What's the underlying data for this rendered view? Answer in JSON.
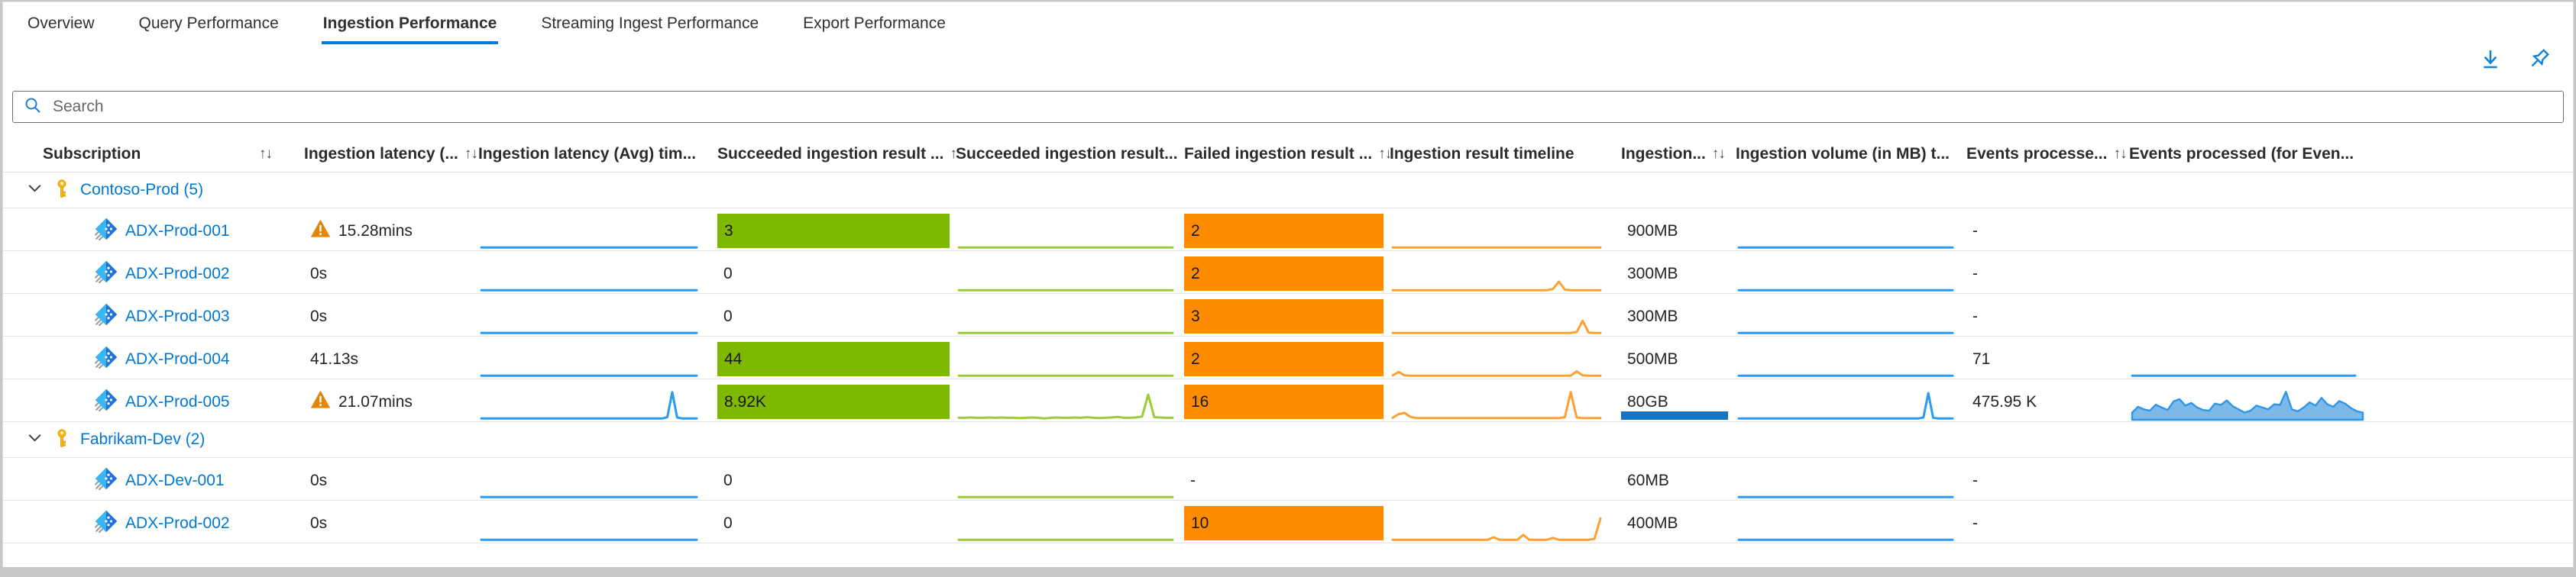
{
  "tabs": [
    {
      "label": "Overview",
      "active": false
    },
    {
      "label": "Query Performance",
      "active": false
    },
    {
      "label": "Ingestion Performance",
      "active": true
    },
    {
      "label": "Streaming Ingest Performance",
      "active": false
    },
    {
      "label": "Export Performance",
      "active": false
    }
  ],
  "search": {
    "placeholder": "Search"
  },
  "colors": {
    "accent": "#0078d4",
    "link": "#0078d4",
    "spark_blue": "#2b9bf2",
    "spark_green": "#9ccb3b",
    "spark_orange": "#ffa033",
    "bar_green": "#7eb900",
    "bar_orange": "#ff8c00",
    "volume_bar": "#1273c3",
    "area_fill": "#7cb9e8",
    "area_stroke": "#2e96e8",
    "warning": "#e08705",
    "key": "#fdb913"
  },
  "table": {
    "columns": [
      {
        "label": "Subscription",
        "sort": true
      },
      {
        "label": "Ingestion latency (...",
        "sort": true
      },
      {
        "label": "Ingestion latency (Avg) tim...",
        "sort": false
      },
      {
        "label": "Succeeded ingestion result ...",
        "sort": true
      },
      {
        "label": "Succeeded ingestion result...",
        "sort": false
      },
      {
        "label": "Failed ingestion result ...",
        "sort": true
      },
      {
        "label": "Ingestion result timeline",
        "sort": false
      },
      {
        "label": "Ingestion...",
        "sort": true
      },
      {
        "label": "Ingestion volume (in MB) t...",
        "sort": false
      },
      {
        "label": "Events processe...",
        "sort": true
      },
      {
        "label": "Events processed (for Even...",
        "sort": false
      }
    ],
    "groups": [
      {
        "label": "Contoso-Prod (5)",
        "rows": [
          {
            "name": "ADX-Prod-001",
            "latency": "15.28mins",
            "warn": true,
            "latency_spark": [
              2,
              2
            ],
            "succeeded": "3",
            "succeeded_bar": true,
            "succeeded_spark": [
              2,
              2
            ],
            "failed": "2",
            "failed_bar": true,
            "result_spark": [
              2,
              2
            ],
            "volume": "900MB",
            "volume_bar": false,
            "volume_spark": [
              2,
              2
            ],
            "events": "-",
            "events_line": null,
            "events_area": null
          },
          {
            "name": "ADX-Prod-002",
            "latency": "0s",
            "warn": false,
            "latency_spark": [
              2,
              2
            ],
            "succeeded": "0",
            "succeeded_bar": false,
            "succeeded_spark": [
              2,
              2
            ],
            "failed": "2",
            "failed_bar": true,
            "result_spark": [
              2,
              2,
              2,
              2,
              2,
              2,
              2,
              2,
              2,
              2,
              2,
              2,
              2,
              2,
              2,
              2,
              2,
              2,
              2,
              2,
              2,
              2,
              2,
              2,
              2,
              2,
              2,
              6,
              30,
              4,
              2,
              2,
              2,
              2,
              2,
              2
            ],
            "volume": "300MB",
            "volume_bar": false,
            "volume_spark": [
              2,
              2
            ],
            "events": "-",
            "events_line": null,
            "events_area": null
          },
          {
            "name": "ADX-Prod-003",
            "latency": "0s",
            "warn": false,
            "latency_spark": [
              2,
              2
            ],
            "succeeded": "0",
            "succeeded_bar": false,
            "succeeded_spark": [
              2,
              2
            ],
            "failed": "3",
            "failed_bar": true,
            "result_spark": [
              2,
              2,
              2,
              2,
              2,
              2,
              2,
              2,
              2,
              2,
              2,
              2,
              2,
              2,
              2,
              2,
              2,
              2,
              2,
              2,
              2,
              2,
              2,
              2,
              2,
              2,
              2,
              2,
              2,
              2,
              2,
              5,
              42,
              3,
              2,
              2
            ],
            "volume": "300MB",
            "volume_bar": false,
            "volume_spark": [
              2,
              2
            ],
            "events": "-",
            "events_line": null,
            "events_area": null
          },
          {
            "name": "ADX-Prod-004",
            "latency": "41.13s",
            "warn": false,
            "latency_spark": [
              2,
              2
            ],
            "succeeded": "44",
            "succeeded_bar": true,
            "succeeded_spark": [
              2,
              2
            ],
            "failed": "2",
            "failed_bar": true,
            "result_spark": [
              3,
              14,
              3,
              2,
              2,
              2,
              2,
              2,
              2,
              2,
              2,
              2,
              2,
              2,
              2,
              2,
              2,
              2,
              2,
              2,
              2,
              2,
              2,
              2,
              2,
              2,
              2,
              2,
              2,
              2,
              2,
              16,
              3,
              2,
              2,
              2
            ],
            "volume": "500MB",
            "volume_bar": false,
            "volume_spark": [
              2,
              2
            ],
            "events": "71",
            "events_line": [
              2,
              2
            ],
            "events_area": null
          },
          {
            "name": "ADX-Prod-005",
            "latency": "21.07mins",
            "warn": true,
            "latency_spark": [
              2,
              2,
              2,
              2,
              2,
              2,
              2,
              2,
              2,
              2,
              2,
              2,
              2,
              2,
              2,
              2,
              2,
              2,
              2,
              2,
              2,
              2,
              2,
              2,
              2,
              2,
              2,
              2,
              2,
              2,
              2,
              2,
              2,
              2,
              2,
              2,
              2,
              2,
              6,
              88,
              5,
              2,
              2,
              2,
              2
            ],
            "succeeded": "8.92K",
            "succeeded_bar": true,
            "succeeded_spark": [
              4,
              4,
              5,
              4,
              4,
              5,
              4,
              5,
              4,
              4,
              3,
              4,
              5,
              4,
              2,
              4,
              5,
              4,
              4,
              5,
              4,
              6,
              4,
              3,
              4,
              5,
              7,
              4,
              4,
              5,
              8,
              80,
              6,
              5,
              4,
              4
            ],
            "failed": "16",
            "failed_bar": true,
            "result_spark": [
              4,
              16,
              20,
              7,
              3,
              3,
              3,
              3,
              3,
              3,
              3,
              3,
              3,
              3,
              3,
              3,
              3,
              3,
              3,
              3,
              3,
              3,
              3,
              3,
              3,
              3,
              3,
              3,
              3,
              6,
              88,
              5,
              3,
              3,
              3,
              3
            ],
            "volume": "80GB",
            "volume_bar": true,
            "volume_spark": [
              2,
              2,
              2,
              2,
              2,
              2,
              2,
              2,
              2,
              2,
              2,
              2,
              2,
              2,
              2,
              2,
              2,
              2,
              2,
              2,
              2,
              2,
              2,
              2,
              2,
              2,
              2,
              2,
              2,
              2,
              2,
              2,
              2,
              2,
              2,
              2,
              2,
              2,
              5,
              85,
              4,
              2,
              2,
              2,
              2
            ],
            "events": "475.95 K",
            "events_line": null,
            "events_area": [
              20,
              38,
              30,
              26,
              45,
              36,
              28,
              55,
              62,
              42,
              50,
              36,
              28,
              26,
              48,
              44,
              58,
              40,
              30,
              20,
              26,
              42,
              36,
              30,
              46,
              44,
              85,
              30,
              24,
              36,
              52,
              42,
              66,
              46,
              38,
              56,
              48,
              34,
              24,
              20
            ]
          }
        ]
      },
      {
        "label": "Fabrikam-Dev (2)",
        "rows": [
          {
            "name": "ADX-Dev-001",
            "latency": "0s",
            "warn": false,
            "latency_spark": [
              2,
              2
            ],
            "succeeded": "0",
            "succeeded_bar": false,
            "succeeded_spark": [
              2,
              2
            ],
            "failed": "-",
            "failed_bar": false,
            "result_spark": null,
            "volume": "60MB",
            "volume_bar": false,
            "volume_spark": [
              2,
              2
            ],
            "events": "-",
            "events_line": null,
            "events_area": null
          },
          {
            "name": "ADX-Prod-002",
            "latency": "0s",
            "warn": false,
            "latency_spark": [
              2,
              2
            ],
            "succeeded": "0",
            "succeeded_bar": false,
            "succeeded_spark": [
              2,
              2
            ],
            "failed": "10",
            "failed_bar": true,
            "result_spark": [
              2,
              2,
              2,
              2,
              2,
              2,
              2,
              2,
              2,
              2,
              2,
              2,
              2,
              2,
              2,
              2,
              2,
              10,
              2,
              2,
              2,
              2,
              18,
              2,
              2,
              2,
              2,
              8,
              2,
              2,
              2,
              2,
              2,
              2,
              5,
              72
            ],
            "volume": "400MB",
            "volume_bar": false,
            "volume_spark": [
              2,
              2
            ],
            "events": "-",
            "events_line": null,
            "events_area": null
          }
        ]
      }
    ]
  }
}
